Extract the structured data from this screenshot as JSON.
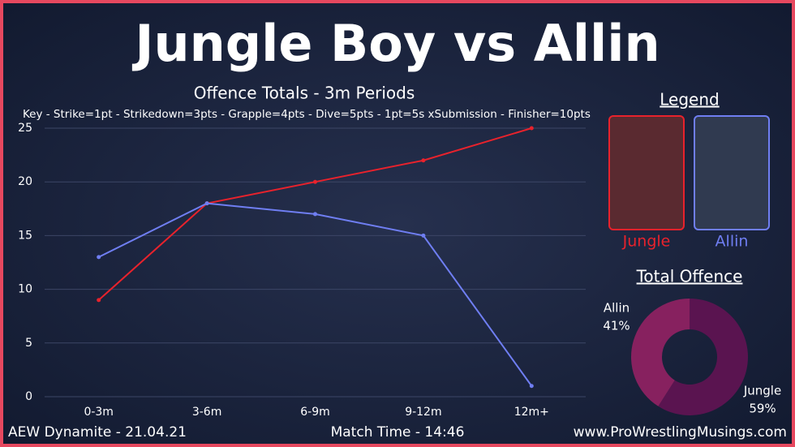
{
  "header": {
    "title": "Jungle Boy vs Allin"
  },
  "chart_data": [
    {
      "type": "line",
      "title": "Offence Totals - 3m Periods",
      "annotation": "Key - Strike=1pt - Strikedown=3pts - Grapple=4pts - Dive=5pts - 1pt=5s xSubmission - Finisher=10pts",
      "categories": [
        "0-3m",
        "3-6m",
        "6-9m",
        "9-12m",
        "12m+"
      ],
      "series": [
        {
          "name": "Jungle",
          "color": "#e8222c",
          "values": [
            9,
            18,
            20,
            22,
            25
          ]
        },
        {
          "name": "Allin",
          "color": "#6f7ef2",
          "values": [
            13,
            18,
            17,
            15,
            1
          ]
        }
      ],
      "ylim": [
        0,
        25
      ],
      "yticks": [
        0,
        5,
        10,
        15,
        20,
        25
      ],
      "grid": true,
      "legend_title": "Legend"
    },
    {
      "type": "pie",
      "title": "Total Offence",
      "categories": [
        "Jungle",
        "Allin"
      ],
      "values": [
        59,
        41
      ],
      "value_labels": [
        "59%",
        "41%"
      ],
      "colors": [
        "#5a1450",
        "#87215f"
      ],
      "donut": true
    }
  ],
  "footer": {
    "left": "AEW Dynamite - 21.04.21",
    "center": "Match Time - 14:46",
    "right": "www.ProWrestlingMusings.com"
  }
}
